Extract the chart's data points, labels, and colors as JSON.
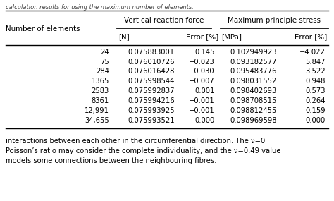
{
  "col0_header": "Number of elements",
  "col1_group": "Vertical reaction force",
  "col2_group": "Maximum principle stress",
  "col1a_header": "[N]",
  "col1b_header": "Error [%]",
  "col2a_header": "[MPa]",
  "col2b_header": "Error [%]",
  "rows": [
    [
      "24",
      "0.075883001",
      "0.145",
      "0.102949923",
      "−4.022"
    ],
    [
      "75",
      "0.076010726",
      "−0.023",
      "0.093182577",
      "5.847"
    ],
    [
      "284",
      "0.076016428",
      "−0.030",
      "0.095483776",
      "3.522"
    ],
    [
      "1365",
      "0.075998544",
      "−0.007",
      "0.098031552",
      "0.948"
    ],
    [
      "2583",
      "0.075992837",
      "0.001",
      "0.098402693",
      "0.573"
    ],
    [
      "8361",
      "0.075994216",
      "−0.001",
      "0.098708515",
      "0.264"
    ],
    [
      "12,991",
      "0.075993925",
      "−0.001",
      "0.098812455",
      "0.159"
    ],
    [
      "34,655",
      "0.075993521",
      "0.000",
      "0.098969598",
      "0.000"
    ]
  ],
  "para1": "interactions between each other in the circumferential direction. The ν=0",
  "para2": "Poisson’s ratio may consider the complete individuality, and the ν=0.49 value",
  "para3": "models some connections between the neighbouring fibres.",
  "bg_color": "#ffffff",
  "text_color": "#000000",
  "top_caption": "calculation results for using the maximum number of elements.",
  "fs_data": 7.2,
  "fs_header": 7.4,
  "fs_para": 7.2
}
